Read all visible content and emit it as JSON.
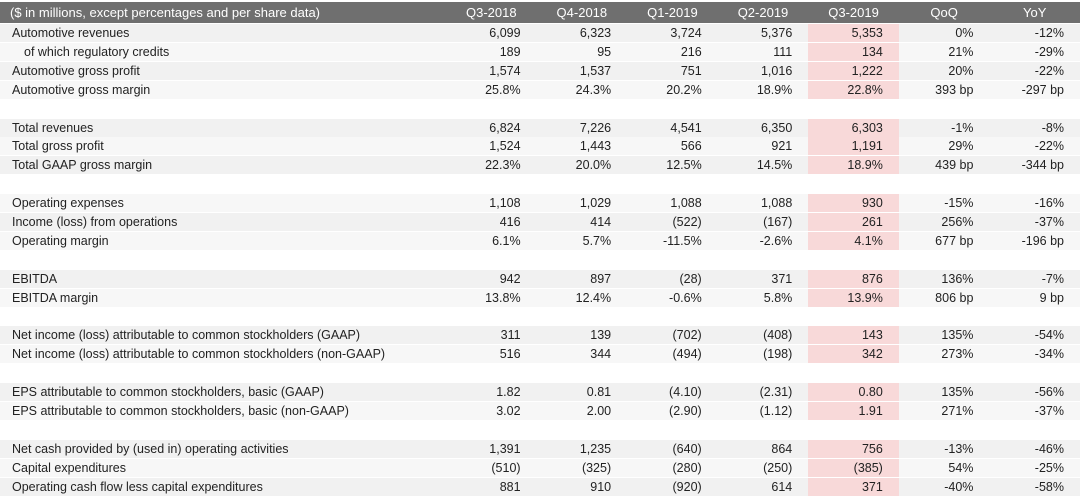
{
  "table": {
    "header": [
      "($ in millions, except percentages and per share data)",
      "Q3-2018",
      "Q4-2018",
      "Q1-2019",
      "Q2-2019",
      "Q3-2019",
      "QoQ",
      "YoY"
    ],
    "groups": [
      [
        [
          "Automotive revenues",
          "6,099",
          "6,323",
          "3,724",
          "5,376",
          "5,353",
          "0%",
          "-12%"
        ],
        [
          "of which regulatory credits",
          "189",
          "95",
          "216",
          "111",
          "134",
          "21%",
          "-29%"
        ],
        [
          "Automotive gross profit",
          "1,574",
          "1,537",
          "751",
          "1,016",
          "1,222",
          "20%",
          "-22%"
        ],
        [
          "Automotive gross margin",
          "25.8%",
          "24.3%",
          "20.2%",
          "18.9%",
          "22.8%",
          "393 bp",
          "-297 bp"
        ]
      ],
      [
        [
          "Total revenues",
          "6,824",
          "7,226",
          "4,541",
          "6,350",
          "6,303",
          "-1%",
          "-8%"
        ],
        [
          "Total gross profit",
          "1,524",
          "1,443",
          "566",
          "921",
          "1,191",
          "29%",
          "-22%"
        ],
        [
          "Total GAAP gross margin",
          "22.3%",
          "20.0%",
          "12.5%",
          "14.5%",
          "18.9%",
          "439 bp",
          "-344 bp"
        ]
      ],
      [
        [
          "Operating expenses",
          "1,108",
          "1,029",
          "1,088",
          "1,088",
          "930",
          "-15%",
          "-16%"
        ],
        [
          "Income (loss) from operations",
          "416",
          "414",
          "(522)",
          "(167)",
          "261",
          "256%",
          "-37%"
        ],
        [
          "Operating margin",
          "6.1%",
          "5.7%",
          "-11.5%",
          "-2.6%",
          "4.1%",
          "677 bp",
          "-196 bp"
        ]
      ],
      [
        [
          "EBITDA",
          "942",
          "897",
          "(28)",
          "371",
          "876",
          "136%",
          "-7%"
        ],
        [
          "EBITDA margin",
          "13.8%",
          "12.4%",
          "-0.6%",
          "5.8%",
          "13.9%",
          "806 bp",
          "9 bp"
        ]
      ],
      [
        [
          "Net income (loss) attributable to common stockholders (GAAP)",
          "311",
          "139",
          "(702)",
          "(408)",
          "143",
          "135%",
          "-54%"
        ],
        [
          "Net income (loss) attributable to common stockholders (non-GAAP)",
          "516",
          "344",
          "(494)",
          "(198)",
          "342",
          "273%",
          "-34%"
        ]
      ],
      [
        [
          "EPS attributable to common stockholders, basic (GAAP)",
          "1.82",
          "0.81",
          "(4.10)",
          "(2.31)",
          "0.80",
          "135%",
          "-56%"
        ],
        [
          "EPS attributable to common stockholders, basic (non-GAAP)",
          "3.02",
          "2.00",
          "(2.90)",
          "(1.12)",
          "1.91",
          "271%",
          "-37%"
        ]
      ],
      [
        [
          "Net cash provided by (used in) operating activities",
          "1,391",
          "1,235",
          "(640)",
          "864",
          "756",
          "-13%",
          "-46%"
        ],
        [
          "Capital expenditures",
          "(510)",
          "(325)",
          "(280)",
          "(250)",
          "(385)",
          "54%",
          "-25%"
        ],
        [
          "Operating cash flow less capital expenditures",
          "881",
          "910",
          "(920)",
          "614",
          "371",
          "-40%",
          "-58%"
        ]
      ]
    ]
  }
}
